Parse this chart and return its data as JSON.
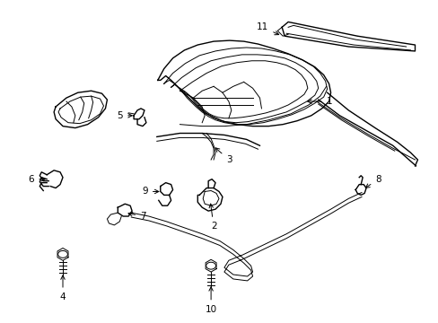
{
  "background_color": "#ffffff",
  "line_color": "#000000",
  "fig_width": 4.89,
  "fig_height": 3.6,
  "dpi": 100,
  "label_fontsize": 7.5,
  "lw_main": 1.0,
  "lw_thin": 0.7
}
